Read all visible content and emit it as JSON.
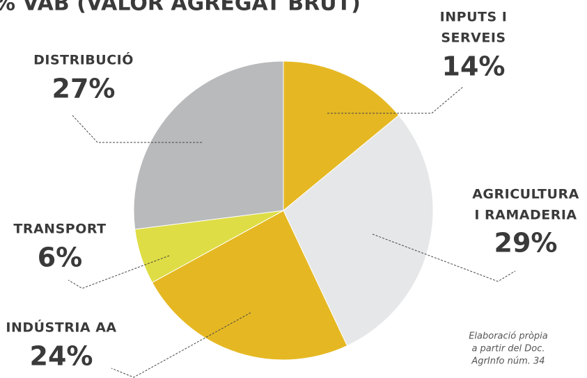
{
  "chart_data": {
    "type": "pie",
    "title": "% VAB (VALOR AGREGAT BRUT)",
    "categories": [
      [
        "INPUTS I",
        "SERVEIS"
      ],
      [
        "AGRICULTURA",
        "I RAMADERIA"
      ],
      [
        "INDÚSTRIA AA"
      ],
      [
        "TRANSPORT"
      ],
      [
        "DISTRIBUCIÓ"
      ]
    ],
    "values": [
      14,
      29,
      24,
      6,
      27
    ],
    "value_labels": [
      "14%",
      "29%",
      "24%",
      "6%",
      "27%"
    ],
    "colors": [
      "#e5b823",
      "#e6e7e8",
      "#e5b823",
      "#dedd45",
      "#b9babb"
    ],
    "note": [
      "Elaboració pròpia",
      "a partir del Doc.",
      "AgrInfo núm. 34"
    ]
  }
}
